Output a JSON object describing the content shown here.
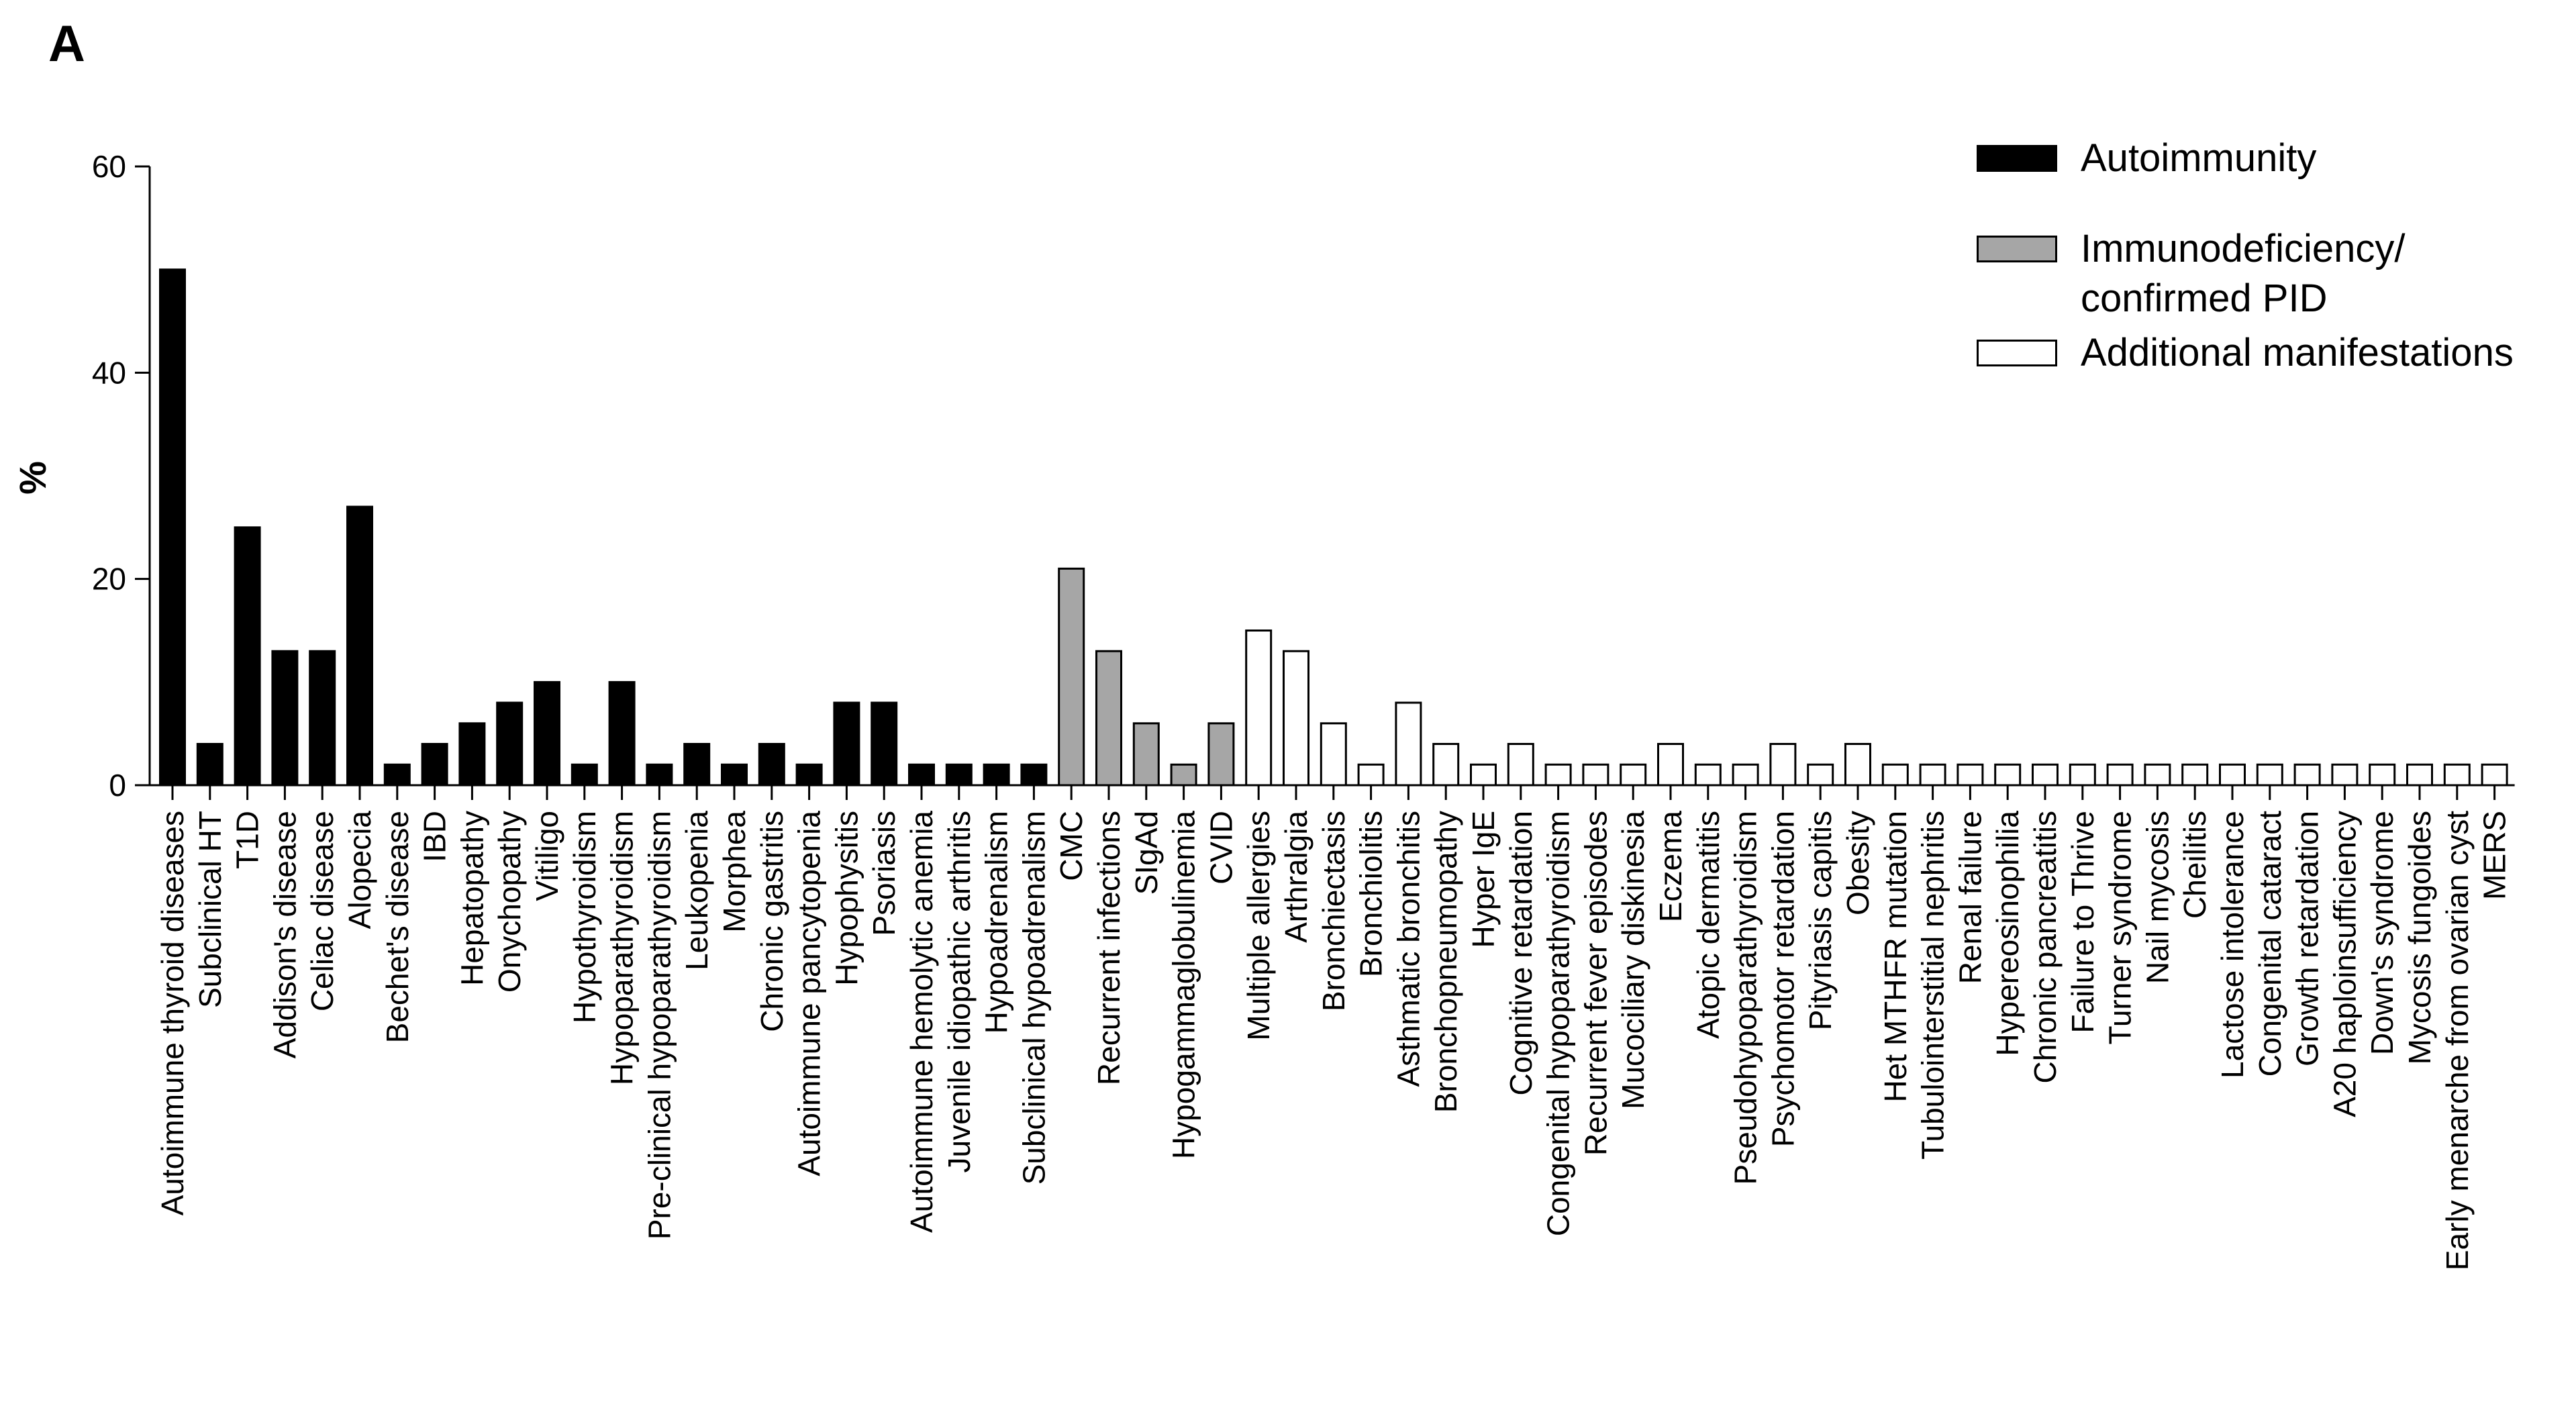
{
  "panel_label": "A",
  "chart_data": {
    "type": "bar",
    "ylabel": "%",
    "xlabel": "",
    "ylim": [
      0,
      60
    ],
    "yticks": [
      0,
      20,
      40,
      60
    ],
    "grid": false,
    "legend_position": "top-right",
    "legend": [
      {
        "name": "Autoimmunity",
        "color": "#000000"
      },
      {
        "name": "Immunodeficiency/ confirmed PID",
        "line1": "Immunodeficiency/",
        "line2": "confirmed PID",
        "color": "#a6a6a6"
      },
      {
        "name": "Additional manifestations",
        "color": "#ffffff"
      }
    ],
    "categories": [
      "Autoimmune thyroid diseases",
      "Subclinical HT",
      "T1D",
      "Addison's disease",
      "Celiac disease",
      "Alopecia",
      "Bechet's disease",
      "IBD",
      "Hepatopathy",
      "Onychopathy",
      "Vitiligo",
      "Hypothyroidism",
      "Hypoparathyroidism",
      "Pre-clinical hypoparathyroidism",
      "Leukopenia",
      "Morphea",
      "Chronic gastritis",
      "Autoimmune pancytopenia",
      "Hypophysitis",
      "Psoriasis",
      "Autoimmune hemolytic anemia",
      "Juvenile idiopathic arthritis",
      "Hypoadrenalism",
      "Subclinical hypoadrenalism",
      "CMC",
      "Recurrent infections",
      "SIgAd",
      "Hypogammaglobulinemia",
      "CVID",
      "Multiple allergies",
      "Arthralgia",
      "Bronchiectasis",
      "Bronchiolitis",
      "Asthmatic bronchitis",
      "Bronchopneumopathy",
      "Hyper IgE",
      "Cognitive retardation",
      "Congenital hypoparathyroidism",
      "Recurrent fever episodes",
      "Mucociliary diskinesia",
      "Eczema",
      "Atopic dermatitis",
      "Pseudohypoparathyroidism",
      "Psychomotor retardation",
      "Pityriasis capitis",
      "Obesity",
      "Het MTHFR mutation",
      "Tubulointerstitial nephritis",
      "Renal failure",
      "Hypereosinophilia",
      "Chronic pancreatitis",
      "Failure to Thrive",
      "Turner syndrome",
      "Nail mycosis",
      "Cheilitis",
      "Lactose intolerance",
      "Congenital cataract",
      "Growth retardation",
      "A20 haploinsufficiency",
      "Down's syndrome",
      "Mycosis fungoides",
      "Early menarche from ovarian cyst",
      "MERS"
    ],
    "values": [
      50,
      4,
      25,
      13,
      13,
      27,
      2,
      4,
      6,
      8,
      10,
      2,
      10,
      2,
      4,
      2,
      4,
      2,
      8,
      8,
      2,
      2,
      2,
      2,
      21,
      13,
      6,
      2,
      6,
      15,
      13,
      6,
      2,
      8,
      4,
      2,
      4,
      2,
      2,
      2,
      4,
      2,
      2,
      4,
      2,
      4,
      2,
      2,
      2,
      2,
      2,
      2,
      2,
      2,
      2,
      2,
      2,
      2,
      2,
      2,
      2,
      2,
      2
    ],
    "groups": [
      "Autoimmunity",
      "Autoimmunity",
      "Autoimmunity",
      "Autoimmunity",
      "Autoimmunity",
      "Autoimmunity",
      "Autoimmunity",
      "Autoimmunity",
      "Autoimmunity",
      "Autoimmunity",
      "Autoimmunity",
      "Autoimmunity",
      "Autoimmunity",
      "Autoimmunity",
      "Autoimmunity",
      "Autoimmunity",
      "Autoimmunity",
      "Autoimmunity",
      "Autoimmunity",
      "Autoimmunity",
      "Autoimmunity",
      "Autoimmunity",
      "Autoimmunity",
      "Autoimmunity",
      "Immunodeficiency/ confirmed PID",
      "Immunodeficiency/ confirmed PID",
      "Immunodeficiency/ confirmed PID",
      "Immunodeficiency/ confirmed PID",
      "Immunodeficiency/ confirmed PID",
      "Additional manifestations",
      "Additional manifestations",
      "Additional manifestations",
      "Additional manifestations",
      "Additional manifestations",
      "Additional manifestations",
      "Additional manifestations",
      "Additional manifestations",
      "Additional manifestations",
      "Additional manifestations",
      "Additional manifestations",
      "Additional manifestations",
      "Additional manifestations",
      "Additional manifestations",
      "Additional manifestations",
      "Additional manifestations",
      "Additional manifestations",
      "Additional manifestations",
      "Additional manifestations",
      "Additional manifestations",
      "Additional manifestations",
      "Additional manifestations",
      "Additional manifestations",
      "Additional manifestations",
      "Additional manifestations",
      "Additional manifestations",
      "Additional manifestations",
      "Additional manifestations",
      "Additional manifestations",
      "Additional manifestations",
      "Additional manifestations",
      "Additional manifestations",
      "Additional manifestations",
      "Additional manifestations"
    ]
  }
}
